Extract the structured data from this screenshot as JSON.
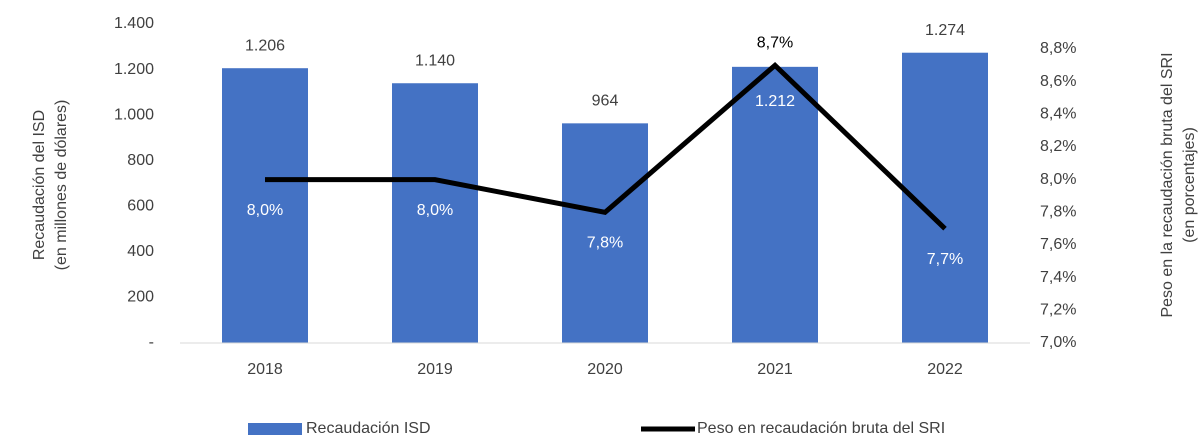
{
  "chart_data": {
    "type": "bar-line",
    "categories": [
      "2018",
      "2019",
      "2020",
      "2021",
      "2022"
    ],
    "series": [
      {
        "name": "Recaudación ISD",
        "type": "bar",
        "color": "#4472c4",
        "values": [
          1206,
          1140,
          964,
          1212,
          1274
        ],
        "value_labels": [
          "1.206",
          "1.140",
          "964",
          "1.212",
          "1.274"
        ]
      },
      {
        "name": "Peso en recaudación bruta del SRI",
        "type": "line",
        "color": "#000000",
        "axis": "y2",
        "values": [
          8.0,
          8.0,
          7.8,
          8.7,
          7.7
        ],
        "value_labels": [
          "8,0%",
          "8,0%",
          "7,8%",
          "8,7%",
          "7,7%"
        ]
      }
    ],
    "ylabel": [
      "Recaudación del ISD",
      "(en millones de dólares)"
    ],
    "y2label": [
      "Peso en la recaudación bruta del SRI",
      "(en porcentajes)"
    ],
    "ylim": [
      0,
      1400
    ],
    "yticks": [
      {
        "value": 0,
        "label": "-"
      },
      200,
      400,
      600,
      800,
      {
        "value": 1000,
        "label": "1.000"
      },
      {
        "value": 1200,
        "label": "1.200"
      },
      {
        "value": 1400,
        "label": "1.400"
      }
    ],
    "y2lim": [
      7.0,
      8.8
    ],
    "y2ticks": [
      {
        "value": 7.0,
        "label": "7,0%"
      },
      {
        "value": 7.2,
        "label": "7,2%"
      },
      {
        "value": 7.4,
        "label": "7,4%"
      },
      {
        "value": 7.6,
        "label": "7,6%"
      },
      {
        "value": 7.8,
        "label": "7,8%"
      },
      {
        "value": 8.0,
        "label": "8,0%"
      },
      {
        "value": 8.2,
        "label": "8,2%"
      },
      {
        "value": 8.4,
        "label": "8,4%"
      },
      {
        "value": 8.6,
        "label": "8,6%"
      },
      {
        "value": 8.8,
        "label": "8,8%"
      }
    ],
    "grid": false
  }
}
